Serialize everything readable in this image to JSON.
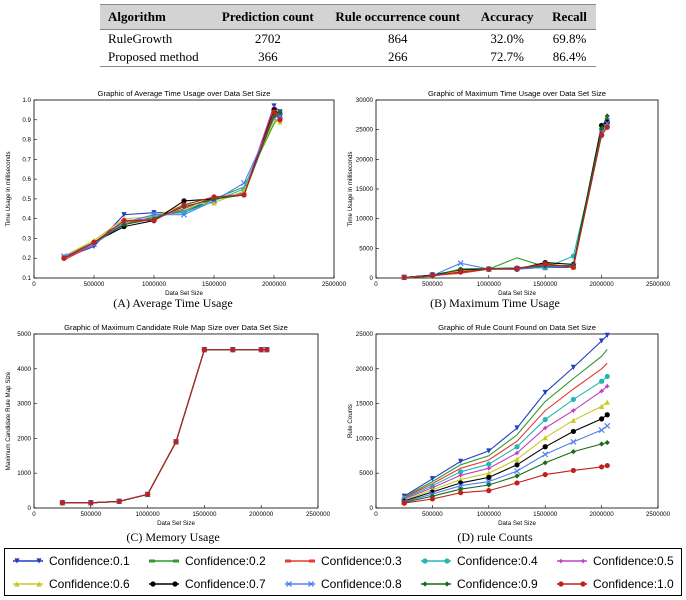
{
  "summary_table": {
    "headers": [
      "Algorithm",
      "Prediction count",
      "Rule occurrence count",
      "Accuracy",
      "Recall"
    ],
    "rows": [
      [
        "RuleGrowth",
        "2702",
        "864",
        "32.0%",
        "69.8%"
      ],
      [
        "Proposed method",
        "366",
        "266",
        "72.7%",
        "86.4%"
      ]
    ]
  },
  "legend": [
    {
      "label": "Confidence:0.1",
      "color": "#1f3fbf",
      "marker": "triangle-down"
    },
    {
      "label": "Confidence:0.2",
      "color": "#2e9a2e",
      "marker": "line"
    },
    {
      "label": "Confidence:0.3",
      "color": "#e53935",
      "marker": "line"
    },
    {
      "label": "Confidence:0.4",
      "color": "#26b5b5",
      "marker": "circle"
    },
    {
      "label": "Confidence:0.5",
      "color": "#c040c0",
      "marker": "star"
    },
    {
      "label": "Confidence:0.6",
      "color": "#c8c820",
      "marker": "triangle-up"
    },
    {
      "label": "Confidence:0.7",
      "color": "#000000",
      "marker": "circle"
    },
    {
      "label": "Confidence:0.8",
      "color": "#5080f0",
      "marker": "cross"
    },
    {
      "label": "Confidence:0.9",
      "color": "#1a6a1a",
      "marker": "diamond"
    },
    {
      "label": "Confidence:1.0",
      "color": "#c02020",
      "marker": "circle"
    }
  ],
  "chart_data": [
    {
      "type": "line",
      "title": "Graphic of Average Time Usage over Data Set Size",
      "xlabel": "Data Set Size",
      "ylabel": "Time Usage in milliseconds",
      "caption": "(A) Average Time Usage",
      "xlim": [
        0,
        2500000
      ],
      "ylim": [
        0.1,
        1.0
      ],
      "xticks": [
        0,
        500000,
        1000000,
        1500000,
        2000000,
        2500000
      ],
      "yticks": [
        0.1,
        0.2,
        0.3,
        0.4,
        0.5,
        0.6,
        0.7,
        0.8,
        0.9,
        1.0
      ],
      "x": [
        250000,
        500000,
        750000,
        1000000,
        1250000,
        1500000,
        1750000,
        2000000,
        2050000
      ],
      "series": [
        {
          "values": [
            0.2,
            0.26,
            0.42,
            0.43,
            0.43,
            0.5,
            0.53,
            0.97,
            0.94
          ]
        },
        {
          "values": [
            0.21,
            0.28,
            0.37,
            0.41,
            0.44,
            0.5,
            0.56,
            0.88,
            0.91
          ]
        },
        {
          "values": [
            0.19,
            0.27,
            0.38,
            0.4,
            0.45,
            0.51,
            0.52,
            0.97,
            0.9
          ]
        },
        {
          "values": [
            0.2,
            0.28,
            0.38,
            0.42,
            0.43,
            0.49,
            0.55,
            0.93,
            0.91
          ]
        },
        {
          "values": [
            0.2,
            0.27,
            0.39,
            0.4,
            0.46,
            0.5,
            0.53,
            0.96,
            0.92
          ]
        },
        {
          "values": [
            0.21,
            0.29,
            0.4,
            0.41,
            0.47,
            0.48,
            0.54,
            0.9,
            0.89
          ]
        },
        {
          "values": [
            0.2,
            0.28,
            0.36,
            0.39,
            0.49,
            0.5,
            0.52,
            0.95,
            0.93
          ]
        },
        {
          "values": [
            0.21,
            0.27,
            0.38,
            0.42,
            0.42,
            0.49,
            0.58,
            0.91,
            0.92
          ]
        },
        {
          "values": [
            0.2,
            0.28,
            0.37,
            0.4,
            0.46,
            0.5,
            0.52,
            0.92,
            0.94
          ]
        },
        {
          "values": [
            0.2,
            0.28,
            0.39,
            0.39,
            0.47,
            0.51,
            0.52,
            0.94,
            0.9
          ]
        }
      ]
    },
    {
      "type": "line",
      "title": "Graphic of Maximum Time Usage over Data Set Size",
      "xlabel": "Data Set Size",
      "ylabel": "Time Usage in milliseconds",
      "caption": "(B) Maximum Time Usage",
      "xlim": [
        0,
        2500000
      ],
      "ylim": [
        0,
        30000
      ],
      "xticks": [
        0,
        500000,
        1000000,
        1500000,
        2000000,
        2500000
      ],
      "yticks": [
        0,
        5000,
        10000,
        15000,
        20000,
        25000,
        30000
      ],
      "x": [
        250000,
        500000,
        750000,
        1000000,
        1250000,
        1500000,
        1750000,
        2000000,
        2050000
      ],
      "series": [
        {
          "values": [
            100,
            500,
            900,
            1500,
            1500,
            1800,
            1800,
            25500,
            26500
          ]
        },
        {
          "values": [
            100,
            300,
            1000,
            1500,
            3400,
            1900,
            2000,
            24500,
            27700
          ]
        },
        {
          "values": [
            100,
            400,
            800,
            1500,
            1600,
            2200,
            2000,
            25800,
            25500
          ]
        },
        {
          "values": [
            100,
            300,
            1100,
            1500,
            1700,
            1700,
            3700,
            24000,
            26000
          ]
        },
        {
          "values": [
            100,
            400,
            1200,
            1500,
            1700,
            2300,
            1900,
            25000,
            26800
          ]
        },
        {
          "values": [
            100,
            300,
            1300,
            1500,
            1600,
            2500,
            1800,
            24200,
            25700
          ]
        },
        {
          "values": [
            100,
            500,
            1400,
            1500,
            1500,
            2600,
            2300,
            25700,
            26300
          ]
        },
        {
          "values": [
            100,
            400,
            2500,
            1500,
            1600,
            1800,
            2100,
            24600,
            26100
          ]
        },
        {
          "values": [
            100,
            300,
            1500,
            1600,
            1700,
            2000,
            2100,
            25200,
            27300
          ]
        },
        {
          "values": [
            100,
            400,
            1000,
            1500,
            1600,
            2400,
            1800,
            24100,
            25400
          ]
        }
      ]
    },
    {
      "type": "line",
      "title": "Graphic of Maximum Candidate Rule Map Size over Data Set Size",
      "xlabel": "Data Set Size",
      "ylabel": "Maximum Candidate Rule Map Size",
      "caption": "(C) Memory Usage",
      "xlim": [
        0,
        2500000
      ],
      "ylim": [
        0,
        5000
      ],
      "xticks": [
        0,
        500000,
        1000000,
        1500000,
        2000000,
        2500000
      ],
      "yticks": [
        0,
        1000,
        2000,
        3000,
        4000,
        5000
      ],
      "x": [
        250000,
        500000,
        750000,
        1000000,
        1250000,
        1500000,
        1750000,
        2000000,
        2050000
      ],
      "series": [
        {
          "values": [
            150,
            150,
            190,
            390,
            1900,
            4550,
            4550,
            4550,
            4550
          ]
        },
        {
          "values": [
            150,
            150,
            190,
            390,
            1900,
            4550,
            4550,
            4550,
            4550
          ]
        },
        {
          "values": [
            150,
            150,
            190,
            390,
            1900,
            4550,
            4550,
            4550,
            4550
          ]
        },
        {
          "values": [
            150,
            150,
            190,
            390,
            1900,
            4550,
            4550,
            4550,
            4550
          ]
        },
        {
          "values": [
            150,
            150,
            190,
            390,
            1900,
            4550,
            4550,
            4550,
            4550
          ]
        },
        {
          "values": [
            150,
            150,
            190,
            390,
            1900,
            4550,
            4550,
            4550,
            4550
          ]
        },
        {
          "values": [
            150,
            150,
            190,
            390,
            1900,
            4550,
            4550,
            4550,
            4550
          ]
        },
        {
          "values": [
            150,
            150,
            190,
            390,
            1900,
            4550,
            4550,
            4550,
            4550
          ]
        },
        {
          "values": [
            150,
            150,
            190,
            390,
            1900,
            4550,
            4550,
            4550,
            4550
          ]
        },
        {
          "values": [
            150,
            150,
            190,
            390,
            1900,
            4550,
            4550,
            4550,
            4550
          ]
        }
      ]
    },
    {
      "type": "line",
      "title": "Graphic of Rule Count Found on Data Set Size",
      "xlabel": "Data Set Size",
      "ylabel": "Rule Counts",
      "caption": "(D) rule Counts",
      "xlim": [
        0,
        2500000
      ],
      "ylim": [
        0,
        25000
      ],
      "xticks": [
        0,
        500000,
        1000000,
        1500000,
        2000000,
        2500000
      ],
      "yticks": [
        0,
        5000,
        10000,
        15000,
        20000,
        25000
      ],
      "x": [
        250000,
        500000,
        750000,
        1000000,
        1250000,
        1500000,
        1750000,
        2000000,
        2050000
      ],
      "series": [
        {
          "values": [
            1700,
            4200,
            6700,
            8200,
            11500,
            16600,
            20200,
            24000,
            24800
          ]
        },
        {
          "values": [
            1600,
            3800,
            6200,
            7500,
            10500,
            15300,
            18600,
            21800,
            22800
          ]
        },
        {
          "values": [
            1500,
            3500,
            5700,
            6900,
            9600,
            14000,
            17100,
            20000,
            20800
          ]
        },
        {
          "values": [
            1400,
            3200,
            5200,
            6300,
            8800,
            12700,
            15600,
            18200,
            18900
          ]
        },
        {
          "values": [
            1300,
            2900,
            4700,
            5700,
            7900,
            11500,
            14000,
            16800,
            17500
          ]
        },
        {
          "values": [
            1100,
            2600,
            4100,
            5000,
            7000,
            10100,
            12600,
            14600,
            15200
          ]
        },
        {
          "values": [
            1000,
            2300,
            3600,
            4400,
            6200,
            8800,
            11000,
            12800,
            13400
          ]
        },
        {
          "values": [
            900,
            2000,
            3200,
            3800,
            5300,
            7700,
            9500,
            11200,
            11800
          ]
        },
        {
          "values": [
            800,
            1700,
            2700,
            3300,
            4600,
            6500,
            8100,
            9200,
            9400
          ]
        },
        {
          "values": [
            700,
            1300,
            2200,
            2500,
            3600,
            4800,
            5400,
            5900,
            6100
          ]
        }
      ]
    }
  ]
}
